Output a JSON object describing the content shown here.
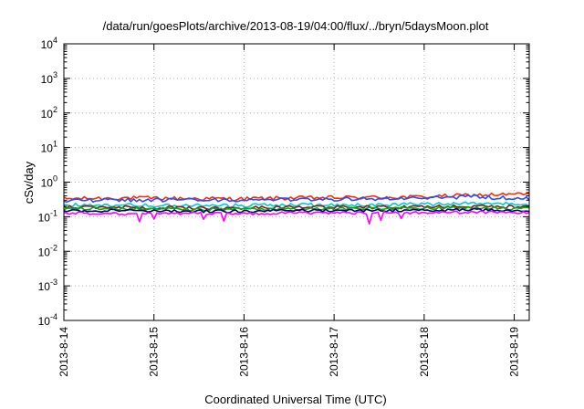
{
  "chart_data": {
    "type": "line",
    "title": "/data/run/goesPlots/archive/2013-08-19/04:00/flux/../bryn/5daysMoon.plot",
    "xlabel": "Coordinated Universal Time (UTC)",
    "ylabel": "cSv/day",
    "yscale": "log",
    "ylim": [
      0.0001,
      10000
    ],
    "y_ticks": [
      {
        "base": "10",
        "exp": "-4",
        "value": 0.0001
      },
      {
        "base": "10",
        "exp": "-3",
        "value": 0.001
      },
      {
        "base": "10",
        "exp": "-2",
        "value": 0.01
      },
      {
        "base": "10",
        "exp": "-1",
        "value": 0.1
      },
      {
        "base": "10",
        "exp": "0",
        "value": 1
      },
      {
        "base": "10",
        "exp": "1",
        "value": 10
      },
      {
        "base": "10",
        "exp": "2",
        "value": 100
      },
      {
        "base": "10",
        "exp": "3",
        "value": 1000
      },
      {
        "base": "10",
        "exp": "4",
        "value": 10000
      }
    ],
    "x_ticks": [
      "2013-8-14",
      "2013-8-15",
      "2013-8-16",
      "2013-8-17",
      "2013-8-18",
      "2013-8-19"
    ],
    "xlim": [
      "2013-08-14 00:00",
      "2013-08-19 04:00"
    ],
    "grid": true,
    "series": [
      {
        "color": "#ff2a00",
        "values": [
          0.33,
          0.35,
          0.34,
          0.33,
          0.35,
          0.36,
          0.37,
          0.42,
          0.45
        ]
      },
      {
        "color": "#2050ff",
        "values": [
          0.3,
          0.31,
          0.3,
          0.3,
          0.31,
          0.33,
          0.34,
          0.38,
          0.33
        ]
      },
      {
        "color": "#00cccc",
        "values": [
          0.22,
          0.22,
          0.21,
          0.21,
          0.22,
          0.22,
          0.23,
          0.24,
          0.23
        ]
      },
      {
        "color": "#8b1a1a",
        "values": [
          0.19,
          0.19,
          0.18,
          0.18,
          0.19,
          0.19,
          0.19,
          0.2,
          0.19
        ]
      },
      {
        "color": "#00b000",
        "values": [
          0.17,
          0.17,
          0.165,
          0.165,
          0.17,
          0.17,
          0.175,
          0.18,
          0.17
        ]
      },
      {
        "color": "#000080",
        "values": [
          0.15,
          0.15,
          0.145,
          0.145,
          0.15,
          0.15,
          0.155,
          0.16,
          0.15
        ]
      },
      {
        "color": "#ff00ff",
        "values": [
          0.13,
          0.12,
          0.125,
          0.12,
          0.13,
          0.13,
          0.13,
          0.135,
          0.13
        ]
      }
    ]
  }
}
